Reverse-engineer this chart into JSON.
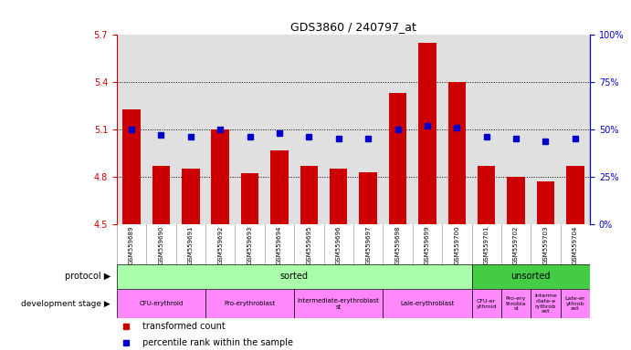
{
  "title": "GDS3860 / 240797_at",
  "samples": [
    "GSM559689",
    "GSM559690",
    "GSM559691",
    "GSM559692",
    "GSM559693",
    "GSM559694",
    "GSM559695",
    "GSM559696",
    "GSM559697",
    "GSM559698",
    "GSM559699",
    "GSM559700",
    "GSM559701",
    "GSM559702",
    "GSM559703",
    "GSM559704"
  ],
  "bar_values": [
    5.23,
    4.87,
    4.85,
    5.1,
    4.82,
    4.97,
    4.87,
    4.85,
    4.83,
    5.33,
    5.65,
    5.4,
    4.87,
    4.8,
    4.77,
    4.87
  ],
  "dot_values": [
    50,
    47,
    46,
    50,
    46,
    48,
    46,
    45,
    45,
    50,
    52,
    51,
    46,
    45,
    44,
    45
  ],
  "ylim_left": [
    4.5,
    5.7
  ],
  "ylim_right": [
    0,
    100
  ],
  "yticks_left": [
    4.5,
    4.8,
    5.1,
    5.4,
    5.7
  ],
  "yticks_right": [
    0,
    25,
    50,
    75,
    100
  ],
  "bar_color": "#cc0000",
  "dot_color": "#0000cc",
  "bg_color": "#e0e0e0",
  "protocol_sorted_color": "#aaffaa",
  "protocol_unsorted_color": "#44cc44",
  "dev_color": "#ff88ff",
  "legend_red_label": "transformed count",
  "legend_blue_label": "percentile rank within the sample",
  "dev_stages_sorted": [
    {
      "label": "CFU-erythroid",
      "span": 3
    },
    {
      "label": "Pro-erythroblast",
      "span": 3
    },
    {
      "label": "Intermediate-erythroblast\nst",
      "span": 3
    },
    {
      "label": "Lale-erythroblast",
      "span": 3
    }
  ],
  "dev_stages_unsorted": [
    {
      "label": "CFU-er\nythroid",
      "span": 1
    },
    {
      "label": "Pro-ery\nthrobla\nst",
      "span": 1
    },
    {
      "label": "Interme\ndiate-e\nrythrob\nast",
      "span": 1
    },
    {
      "label": "Late-er\nythrob\nast",
      "span": 1
    }
  ]
}
